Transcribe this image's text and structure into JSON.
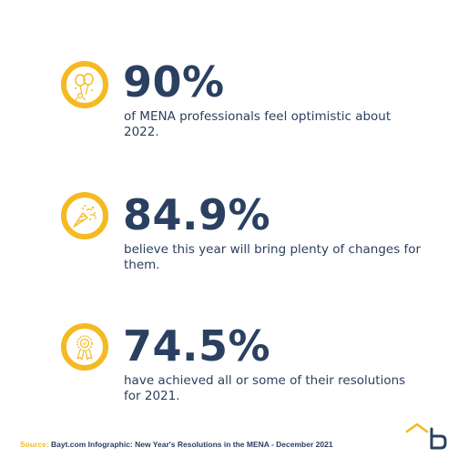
{
  "colors": {
    "accent": "#f5b923",
    "text": "#2b4060",
    "background": "#ffffff"
  },
  "stats": [
    {
      "icon": "celebration-balloons-icon",
      "value": "90%",
      "description": "of MENA professionals feel optimistic about 2022."
    },
    {
      "icon": "party-popper-icon",
      "value": "84.9%",
      "description": "believe this year will bring plenty of changes for them."
    },
    {
      "icon": "award-ribbon-icon",
      "value": "74.5%",
      "description": "have achieved all or some of their resolutions for 2021."
    }
  ],
  "footer": {
    "source_label": "Source:",
    "source_text": " Bayt.com Infographic: New Year's Resolutions in the MENA - December 2021"
  },
  "logo": {
    "icon": "bayt-logo-icon"
  }
}
